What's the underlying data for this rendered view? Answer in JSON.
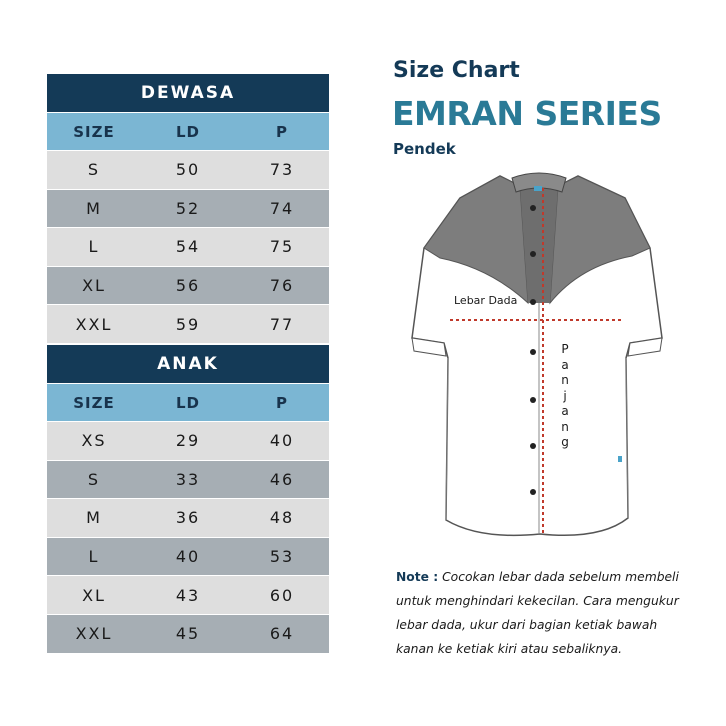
{
  "adult_table": {
    "title": "DEWASA",
    "columns": [
      "SIZE",
      "LD",
      "P"
    ],
    "rows": [
      {
        "size": "S",
        "ld": "50",
        "p": "73"
      },
      {
        "size": "M",
        "ld": "52",
        "p": "74"
      },
      {
        "size": "L",
        "ld": "54",
        "p": "75"
      },
      {
        "size": "XL",
        "ld": "56",
        "p": "76"
      },
      {
        "size": "XXL",
        "ld": "59",
        "p": "77"
      }
    ]
  },
  "child_table": {
    "title": "ANAK",
    "columns": [
      "SIZE",
      "LD",
      "P"
    ],
    "rows": [
      {
        "size": "XS",
        "ld": "29",
        "p": "40"
      },
      {
        "size": "S",
        "ld": "33",
        "p": "46"
      },
      {
        "size": "M",
        "ld": "36",
        "p": "48"
      },
      {
        "size": "L",
        "ld": "40",
        "p": "53"
      },
      {
        "size": "XL",
        "ld": "43",
        "p": "60"
      },
      {
        "size": "XXL",
        "ld": "45",
        "p": "64"
      }
    ]
  },
  "header": {
    "title_small": "Size Chart",
    "title_big": "EMRAN SERIES",
    "subtitle": "Pendek"
  },
  "diagram": {
    "label_chest": "Lebar Dada",
    "label_length": "Panjang",
    "icon": "short-sleeve-shirt-icon"
  },
  "note": {
    "label": "Note :",
    "text": "Cocokan lebar dada sebelum membeli untuk menghindari kekecilan. Cara mengukur lebar dada, ukur dari bagian ketiak bawah kanan ke ketiak kiri atau sebaliknya."
  },
  "colors": {
    "header_dark": "#143a57",
    "header_light": "#7bb6d3",
    "row_light": "#dedede",
    "row_dark": "#a6aeb4",
    "title_accent": "#2a7a96",
    "measure_line": "#c0392b"
  }
}
